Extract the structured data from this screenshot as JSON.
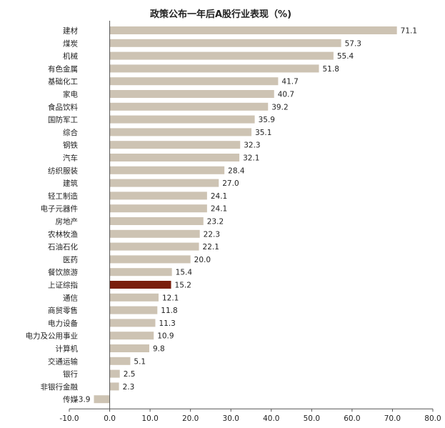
{
  "chart_data": {
    "type": "bar",
    "orientation": "horizontal",
    "title": "政策公布一年后A股行业表现（%)",
    "xlabel": "",
    "ylabel": "",
    "xlim": [
      -10,
      80
    ],
    "xticks": [
      "-10.0",
      "0.0",
      "10.0",
      "20.0",
      "30.0",
      "40.0",
      "50.0",
      "60.0",
      "70.0",
      "80.0"
    ],
    "grid": false,
    "colors": {
      "bar": "#cdc3b3",
      "highlight": "#7a1e0c",
      "negative_label": "#e0262a",
      "axis": "#555555",
      "text": "#222222"
    },
    "highlight_category": "上证综指",
    "categories": [
      "建材",
      "煤炭",
      "机械",
      "有色金属",
      "基础化工",
      "家电",
      "食品饮料",
      "国防军工",
      "综合",
      "钢铁",
      "汽车",
      "纺织服装",
      "建筑",
      "轻工制造",
      "电子元器件",
      "房地产",
      "农林牧渔",
      "石油石化",
      "医药",
      "餐饮旅游",
      "上证综指",
      "通信",
      "商贸零售",
      "电力设备",
      "电力及公用事业",
      "计算机",
      "交通运输",
      "银行",
      "非银行金融",
      "传媒"
    ],
    "values": [
      71.1,
      57.3,
      55.4,
      51.8,
      41.7,
      40.7,
      39.2,
      35.9,
      35.1,
      32.3,
      32.1,
      28.4,
      27.0,
      24.1,
      24.1,
      23.2,
      22.3,
      22.1,
      20.0,
      15.4,
      15.2,
      12.1,
      11.8,
      11.3,
      10.9,
      9.8,
      5.1,
      2.5,
      2.3,
      -3.9
    ],
    "labels": [
      "71.1",
      "57.3",
      "55.4",
      "51.8",
      "41.7",
      "40.7",
      "39.2",
      "35.9",
      "35.1",
      "32.3",
      "32.1",
      "28.4",
      "27.0",
      "24.1",
      "24.1",
      "23.2",
      "22.3",
      "22.1",
      "20.0",
      "15.4",
      "15.2",
      "12.1",
      "11.8",
      "11.3",
      "10.9",
      "9.8",
      "5.1",
      "2.5",
      "2.3",
      "-3.9"
    ]
  }
}
